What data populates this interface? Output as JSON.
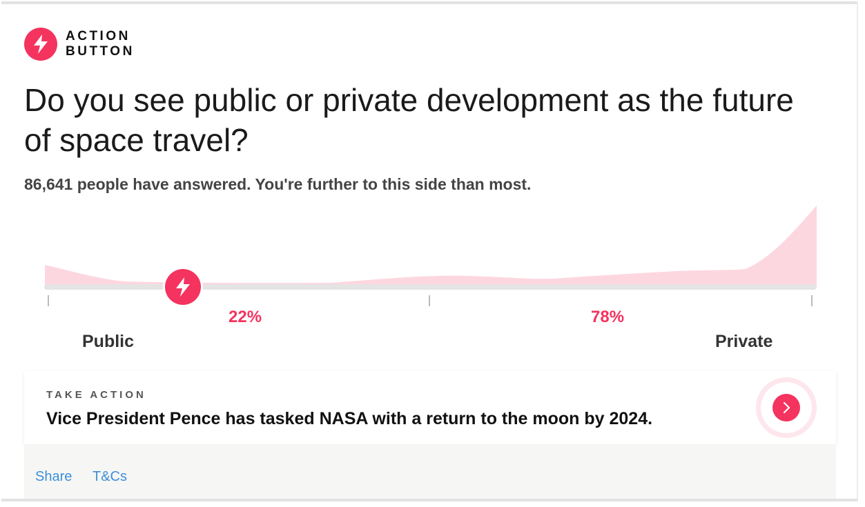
{
  "brand": {
    "line1": "ACTION",
    "line2": "BUTTON",
    "icon": "lightning-bolt-icon",
    "accent": "#f4335f"
  },
  "question": "Do you see public or private development as the future of space travel?",
  "answered_text": "86,641 people have answered. You're further to this side than most.",
  "poll": {
    "left_label": "Public",
    "right_label": "Private",
    "left_percent": "22%",
    "right_percent": "78%",
    "user_position": 0.18,
    "distribution_color": "#fdd7e0",
    "marker_icon": "lightning-bolt-icon"
  },
  "take_action": {
    "eyebrow": "TAKE ACTION",
    "headline": "Vice President Pence has tasked NASA with a return to the moon by 2024.",
    "button_icon": "chevron-right-icon"
  },
  "footer": {
    "share": "Share",
    "terms": "T&Cs",
    "link_color": "#3b8fd9"
  }
}
